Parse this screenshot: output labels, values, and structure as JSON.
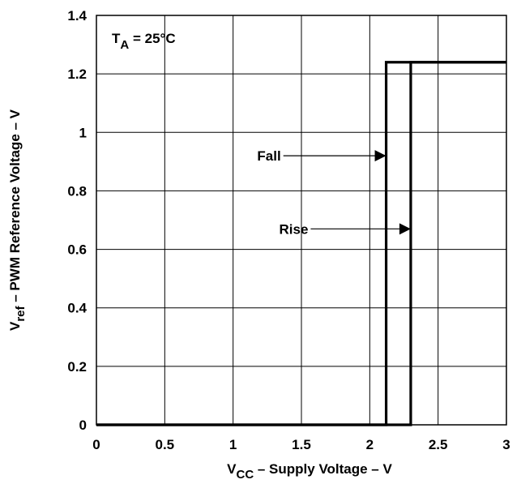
{
  "chart_data": {
    "type": "line",
    "title": "",
    "xlabel": {
      "main": "V",
      "sub": "CC",
      "rest": " – Supply Voltage – V"
    },
    "ylabel": {
      "main": "V",
      "sub": "ref",
      "rest": "  – PWM Reference Voltage – V"
    },
    "xlim": [
      0,
      3
    ],
    "ylim": [
      0,
      1.4
    ],
    "x_ticks": [
      0,
      0.5,
      1,
      1.5,
      2,
      2.5,
      3
    ],
    "x_tick_labels": [
      "0",
      "0.5",
      "1",
      "1.5",
      "2",
      "2.5",
      "3"
    ],
    "y_ticks": [
      0,
      0.2,
      0.4,
      0.6,
      0.8,
      1,
      1.2,
      1.4
    ],
    "y_tick_labels": [
      "0",
      "0.2",
      "0.4",
      "0.6",
      "0.8",
      "1",
      "1.2",
      "1.4"
    ],
    "grid": true,
    "series": [
      {
        "name": "Fall",
        "x": [
          0,
          2.12,
          2.12,
          3
        ],
        "y": [
          0,
          0,
          1.24,
          1.24
        ]
      },
      {
        "name": "Rise",
        "x": [
          0,
          2.3,
          2.3,
          3
        ],
        "y": [
          0,
          0,
          1.24,
          1.24
        ]
      }
    ],
    "annotations": [
      {
        "text": "Fall",
        "label_at": [
          1.35,
          0.92
        ],
        "arrow_to": [
          2.12,
          0.92
        ]
      },
      {
        "text": "Rise",
        "label_at": [
          1.55,
          0.67
        ],
        "arrow_to": [
          2.3,
          0.67
        ]
      }
    ],
    "condition_label": {
      "main": "T",
      "sub": "A",
      "rest": " = 25°C"
    }
  },
  "colors": {
    "line": "#000000",
    "grid": "#000000",
    "background": "#ffffff"
  }
}
